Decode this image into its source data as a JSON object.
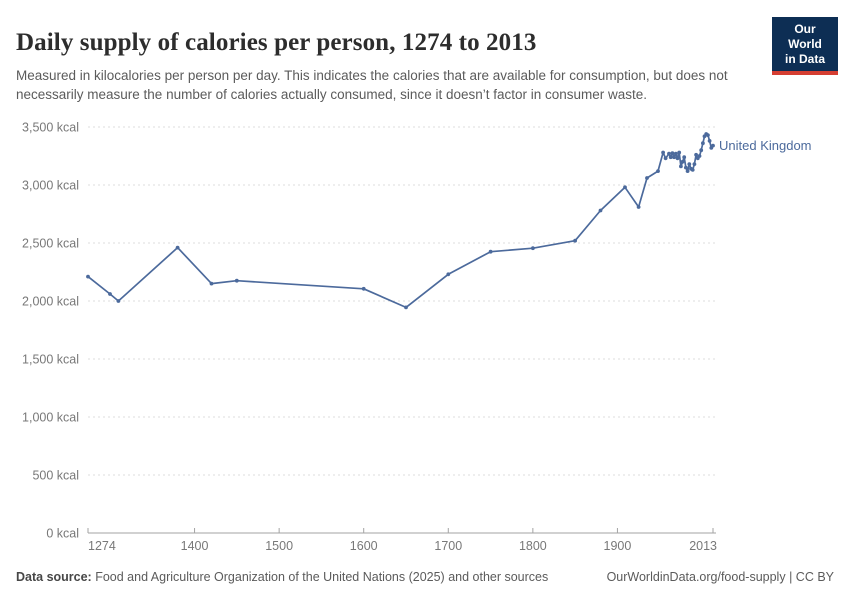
{
  "header": {
    "title": "Daily supply of calories per person, 1274 to 2013",
    "subtitle": "Measured in kilocalories per person per day. This indicates the calories that are available for consumption, but does not necessarily measure the number of calories actually consumed, since it doesn’t factor in consumer waste."
  },
  "logo": {
    "line1": "Our World",
    "line2": "in Data",
    "bg_color": "#0d2e54",
    "bar_color": "#d53e32"
  },
  "footer": {
    "data_source_label": "Data source:",
    "data_source_text": " Food and Agriculture Organization of the United Nations (2025) and other sources",
    "right_url": "OurWorldinData.org/food-supply",
    "right_separator": " | ",
    "right_license": "CC BY"
  },
  "chart_data": {
    "type": "line",
    "title": "Daily supply of calories per person, 1274 to 2013",
    "xlabel": "",
    "ylabel": "",
    "unit": "kcal",
    "xlim": [
      1274,
      2013
    ],
    "ylim": [
      0,
      3500
    ],
    "grid": "horizontal dashed",
    "legend_position": "end-of-line label",
    "colors": {
      "grid": "#dddddd",
      "axis": "#a3a3a3",
      "tick_text": "#787878"
    },
    "yticks": [
      {
        "value": 0,
        "label": "0 kcal"
      },
      {
        "value": 500,
        "label": "500 kcal"
      },
      {
        "value": 1000,
        "label": "1,000 kcal"
      },
      {
        "value": 1500,
        "label": "1,500 kcal"
      },
      {
        "value": 2000,
        "label": "2,000 kcal"
      },
      {
        "value": 2500,
        "label": "2,500 kcal"
      },
      {
        "value": 3000,
        "label": "3,000 kcal"
      },
      {
        "value": 3500,
        "label": "3,500 kcal"
      }
    ],
    "xticks": [
      {
        "value": 1274,
        "label": "1274"
      },
      {
        "value": 1400,
        "label": "1400"
      },
      {
        "value": 1500,
        "label": "1500"
      },
      {
        "value": 1600,
        "label": "1600"
      },
      {
        "value": 1700,
        "label": "1700"
      },
      {
        "value": 1800,
        "label": "1800"
      },
      {
        "value": 1900,
        "label": "1900"
      },
      {
        "value": 2013,
        "label": "2013"
      }
    ],
    "series": [
      {
        "name": "United Kingdom",
        "color": "#4C6A9C",
        "points": [
          [
            1274,
            2210
          ],
          [
            1300,
            2060
          ],
          [
            1310,
            2000
          ],
          [
            1380,
            2460
          ],
          [
            1420,
            2150
          ],
          [
            1450,
            2175
          ],
          [
            1600,
            2105
          ],
          [
            1650,
            1945
          ],
          [
            1700,
            2230
          ],
          [
            1750,
            2425
          ],
          [
            1800,
            2455
          ],
          [
            1850,
            2520
          ],
          [
            1880,
            2780
          ],
          [
            1909,
            2980
          ],
          [
            1925,
            2810
          ],
          [
            1935,
            3060
          ],
          [
            1948,
            3120
          ],
          [
            1954,
            3280
          ],
          [
            1957,
            3230
          ],
          [
            1961,
            3270
          ],
          [
            1963,
            3240
          ],
          [
            1965,
            3275
          ],
          [
            1967,
            3240
          ],
          [
            1969,
            3270
          ],
          [
            1971,
            3230
          ],
          [
            1973,
            3280
          ],
          [
            1975,
            3160
          ],
          [
            1977,
            3200
          ],
          [
            1979,
            3240
          ],
          [
            1981,
            3150
          ],
          [
            1983,
            3120
          ],
          [
            1985,
            3180
          ],
          [
            1987,
            3140
          ],
          [
            1989,
            3130
          ],
          [
            1991,
            3180
          ],
          [
            1993,
            3260
          ],
          [
            1995,
            3230
          ],
          [
            1997,
            3250
          ],
          [
            1999,
            3300
          ],
          [
            2001,
            3360
          ],
          [
            2003,
            3420
          ],
          [
            2005,
            3440
          ],
          [
            2007,
            3430
          ],
          [
            2009,
            3380
          ],
          [
            2011,
            3320
          ],
          [
            2013,
            3340
          ]
        ]
      }
    ]
  }
}
